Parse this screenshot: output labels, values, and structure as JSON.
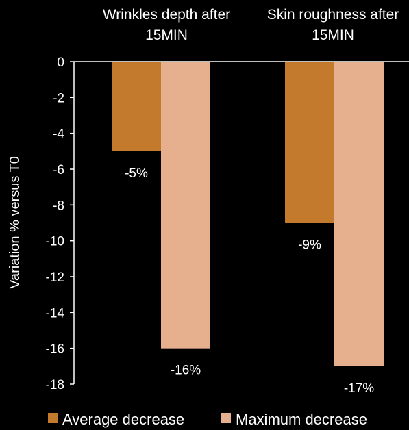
{
  "chart_data": {
    "type": "bar",
    "categories": [
      [
        "Wrinkles depth after",
        "15MIN"
      ],
      [
        "Skin roughness after",
        "15MIN"
      ]
    ],
    "series": [
      {
        "name": "Average decrease",
        "color": "#C47A2C",
        "values": [
          -5,
          -9
        ],
        "labels": [
          "-5%",
          "-9%"
        ]
      },
      {
        "name": "Maximum decrease",
        "color": "#E6B08F",
        "values": [
          -16,
          -17
        ],
        "labels": [
          "-16%",
          "-17%"
        ]
      }
    ],
    "ylabel": "Variation % versus T0",
    "ylim": [
      -18,
      0
    ],
    "yticks": [
      0,
      -2,
      -4,
      -6,
      -8,
      -10,
      -12,
      -14,
      -16,
      -18
    ],
    "grid": false,
    "legend_position": "bottom",
    "background": "#000000",
    "axis_color": "#FFFFFF"
  }
}
